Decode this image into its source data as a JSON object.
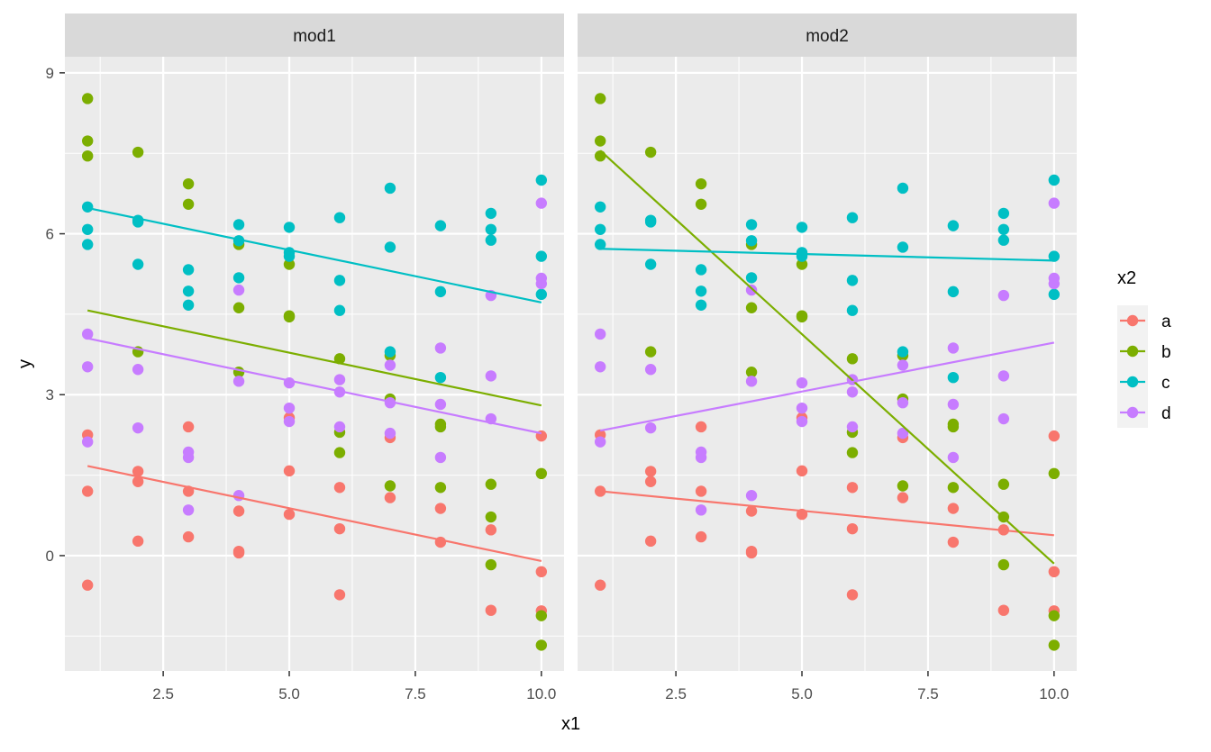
{
  "chart_data": {
    "type": "scatter",
    "xlabel": "x1",
    "ylabel": "y",
    "xlim": [
      0.55,
      10.45
    ],
    "ylim": [
      -2.15,
      9.3
    ],
    "xticks": [
      2.5,
      5.0,
      7.5,
      10.0
    ],
    "xtick_labels": [
      "2.5",
      "5.0",
      "7.5",
      "10.0"
    ],
    "yticks": [
      0,
      3,
      6,
      9
    ],
    "ytick_labels": [
      "0",
      "3",
      "6",
      "9"
    ],
    "grid": true,
    "legend": {
      "title": "x2",
      "placement": "right",
      "entries": [
        {
          "key": "a",
          "label": "a",
          "color": "#F8766D"
        },
        {
          "key": "b",
          "label": "b",
          "color": "#7CAE00"
        },
        {
          "key": "c",
          "label": "c",
          "color": "#00BFC4"
        },
        {
          "key": "d",
          "label": "d",
          "color": "#C77CFF"
        }
      ]
    },
    "panels": [
      {
        "name": "mod1",
        "fitted_lines": [
          {
            "series": "a",
            "x": [
              1,
              10
            ],
            "y": [
              1.67,
              -0.1
            ]
          },
          {
            "series": "b",
            "x": [
              1,
              10
            ],
            "y": [
              4.57,
              2.8
            ]
          },
          {
            "series": "c",
            "x": [
              1,
              10
            ],
            "y": [
              6.48,
              4.72
            ]
          },
          {
            "series": "d",
            "x": [
              1,
              10
            ],
            "y": [
              4.05,
              2.28
            ]
          }
        ]
      },
      {
        "name": "mod2",
        "fitted_lines": [
          {
            "series": "a",
            "x": [
              1,
              10
            ],
            "y": [
              1.2,
              0.38
            ]
          },
          {
            "series": "b",
            "x": [
              1,
              10
            ],
            "y": [
              7.55,
              -0.15
            ]
          },
          {
            "series": "c",
            "x": [
              1,
              10
            ],
            "y": [
              5.72,
              5.5
            ]
          },
          {
            "series": "d",
            "x": [
              1,
              10
            ],
            "y": [
              2.33,
              3.97
            ]
          }
        ]
      }
    ],
    "points": [
      {
        "series": "a",
        "x": 1,
        "y": 2.25
      },
      {
        "series": "a",
        "x": 1,
        "y": 1.2
      },
      {
        "series": "a",
        "x": 1,
        "y": -0.55
      },
      {
        "series": "a",
        "x": 2,
        "y": 1.57
      },
      {
        "series": "a",
        "x": 2,
        "y": 1.38
      },
      {
        "series": "a",
        "x": 2,
        "y": 0.27
      },
      {
        "series": "a",
        "x": 3,
        "y": 2.4
      },
      {
        "series": "a",
        "x": 3,
        "y": 1.2
      },
      {
        "series": "a",
        "x": 3,
        "y": 0.35
      },
      {
        "series": "a",
        "x": 4,
        "y": 0.83
      },
      {
        "series": "a",
        "x": 4,
        "y": 0.08
      },
      {
        "series": "a",
        "x": 4,
        "y": 0.05
      },
      {
        "series": "a",
        "x": 5,
        "y": 2.57
      },
      {
        "series": "a",
        "x": 5,
        "y": 1.58
      },
      {
        "series": "a",
        "x": 5,
        "y": 0.77
      },
      {
        "series": "a",
        "x": 6,
        "y": 1.27
      },
      {
        "series": "a",
        "x": 6,
        "y": 0.5
      },
      {
        "series": "a",
        "x": 6,
        "y": -0.73
      },
      {
        "series": "a",
        "x": 7,
        "y": 2.2
      },
      {
        "series": "a",
        "x": 7,
        "y": 1.08
      },
      {
        "series": "a",
        "x": 8,
        "y": 0.88
      },
      {
        "series": "a",
        "x": 8,
        "y": 0.25
      },
      {
        "series": "a",
        "x": 9,
        "y": 0.48
      },
      {
        "series": "a",
        "x": 9,
        "y": -1.02
      },
      {
        "series": "a",
        "x": 10,
        "y": 2.23
      },
      {
        "series": "a",
        "x": 10,
        "y": -0.3
      },
      {
        "series": "a",
        "x": 10,
        "y": -1.03
      },
      {
        "series": "b",
        "x": 1,
        "y": 8.52
      },
      {
        "series": "b",
        "x": 1,
        "y": 7.73
      },
      {
        "series": "b",
        "x": 1,
        "y": 7.45
      },
      {
        "series": "b",
        "x": 2,
        "y": 7.52
      },
      {
        "series": "b",
        "x": 2,
        "y": 3.8
      },
      {
        "series": "b",
        "x": 3,
        "y": 6.93
      },
      {
        "series": "b",
        "x": 3,
        "y": 6.55
      },
      {
        "series": "b",
        "x": 4,
        "y": 5.8
      },
      {
        "series": "b",
        "x": 4,
        "y": 4.62
      },
      {
        "series": "b",
        "x": 4,
        "y": 3.42
      },
      {
        "series": "b",
        "x": 5,
        "y": 5.43
      },
      {
        "series": "b",
        "x": 5,
        "y": 4.47
      },
      {
        "series": "b",
        "x": 5,
        "y": 4.45
      },
      {
        "series": "b",
        "x": 6,
        "y": 3.67
      },
      {
        "series": "b",
        "x": 6,
        "y": 2.3
      },
      {
        "series": "b",
        "x": 6,
        "y": 1.92
      },
      {
        "series": "b",
        "x": 7,
        "y": 3.73
      },
      {
        "series": "b",
        "x": 7,
        "y": 2.92
      },
      {
        "series": "b",
        "x": 7,
        "y": 1.3
      },
      {
        "series": "b",
        "x": 8,
        "y": 2.45
      },
      {
        "series": "b",
        "x": 8,
        "y": 2.4
      },
      {
        "series": "b",
        "x": 8,
        "y": 1.27
      },
      {
        "series": "b",
        "x": 9,
        "y": 1.33
      },
      {
        "series": "b",
        "x": 9,
        "y": 0.72
      },
      {
        "series": "b",
        "x": 9,
        "y": -0.17
      },
      {
        "series": "b",
        "x": 10,
        "y": 1.53
      },
      {
        "series": "b",
        "x": 10,
        "y": -1.12
      },
      {
        "series": "b",
        "x": 10,
        "y": -1.67
      },
      {
        "series": "c",
        "x": 1,
        "y": 6.5
      },
      {
        "series": "c",
        "x": 1,
        "y": 6.08
      },
      {
        "series": "c",
        "x": 1,
        "y": 5.8
      },
      {
        "series": "c",
        "x": 2,
        "y": 6.25
      },
      {
        "series": "c",
        "x": 2,
        "y": 6.22
      },
      {
        "series": "c",
        "x": 2,
        "y": 5.43
      },
      {
        "series": "c",
        "x": 3,
        "y": 5.33
      },
      {
        "series": "c",
        "x": 3,
        "y": 4.93
      },
      {
        "series": "c",
        "x": 3,
        "y": 4.67
      },
      {
        "series": "c",
        "x": 4,
        "y": 6.17
      },
      {
        "series": "c",
        "x": 4,
        "y": 5.87
      },
      {
        "series": "c",
        "x": 4,
        "y": 5.18
      },
      {
        "series": "c",
        "x": 5,
        "y": 6.12
      },
      {
        "series": "c",
        "x": 5,
        "y": 5.65
      },
      {
        "series": "c",
        "x": 5,
        "y": 5.58
      },
      {
        "series": "c",
        "x": 6,
        "y": 6.3
      },
      {
        "series": "c",
        "x": 6,
        "y": 5.13
      },
      {
        "series": "c",
        "x": 6,
        "y": 4.57
      },
      {
        "series": "c",
        "x": 7,
        "y": 6.85
      },
      {
        "series": "c",
        "x": 7,
        "y": 5.75
      },
      {
        "series": "c",
        "x": 7,
        "y": 3.8
      },
      {
        "series": "c",
        "x": 8,
        "y": 6.15
      },
      {
        "series": "c",
        "x": 8,
        "y": 4.92
      },
      {
        "series": "c",
        "x": 8,
        "y": 3.32
      },
      {
        "series": "c",
        "x": 9,
        "y": 6.38
      },
      {
        "series": "c",
        "x": 9,
        "y": 6.08
      },
      {
        "series": "c",
        "x": 9,
        "y": 5.88
      },
      {
        "series": "c",
        "x": 10,
        "y": 7.0
      },
      {
        "series": "c",
        "x": 10,
        "y": 5.58
      },
      {
        "series": "c",
        "x": 10,
        "y": 4.87
      },
      {
        "series": "d",
        "x": 1,
        "y": 4.13
      },
      {
        "series": "d",
        "x": 1,
        "y": 3.52
      },
      {
        "series": "d",
        "x": 1,
        "y": 2.12
      },
      {
        "series": "d",
        "x": 2,
        "y": 3.47
      },
      {
        "series": "d",
        "x": 2,
        "y": 2.38
      },
      {
        "series": "d",
        "x": 3,
        "y": 1.93
      },
      {
        "series": "d",
        "x": 3,
        "y": 1.83
      },
      {
        "series": "d",
        "x": 3,
        "y": 0.85
      },
      {
        "series": "d",
        "x": 4,
        "y": 4.95
      },
      {
        "series": "d",
        "x": 4,
        "y": 3.25
      },
      {
        "series": "d",
        "x": 4,
        "y": 1.12
      },
      {
        "series": "d",
        "x": 5,
        "y": 3.22
      },
      {
        "series": "d",
        "x": 5,
        "y": 2.75
      },
      {
        "series": "d",
        "x": 5,
        "y": 2.5
      },
      {
        "series": "d",
        "x": 6,
        "y": 3.28
      },
      {
        "series": "d",
        "x": 6,
        "y": 3.05
      },
      {
        "series": "d",
        "x": 6,
        "y": 2.4
      },
      {
        "series": "d",
        "x": 7,
        "y": 3.55
      },
      {
        "series": "d",
        "x": 7,
        "y": 2.85
      },
      {
        "series": "d",
        "x": 7,
        "y": 2.28
      },
      {
        "series": "d",
        "x": 8,
        "y": 3.87
      },
      {
        "series": "d",
        "x": 8,
        "y": 2.82
      },
      {
        "series": "d",
        "x": 8,
        "y": 1.83
      },
      {
        "series": "d",
        "x": 9,
        "y": 4.85
      },
      {
        "series": "d",
        "x": 9,
        "y": 3.35
      },
      {
        "series": "d",
        "x": 9,
        "y": 2.55
      },
      {
        "series": "d",
        "x": 10,
        "y": 6.57
      },
      {
        "series": "d",
        "x": 10,
        "y": 5.17
      },
      {
        "series": "d",
        "x": 10,
        "y": 5.07
      }
    ]
  }
}
